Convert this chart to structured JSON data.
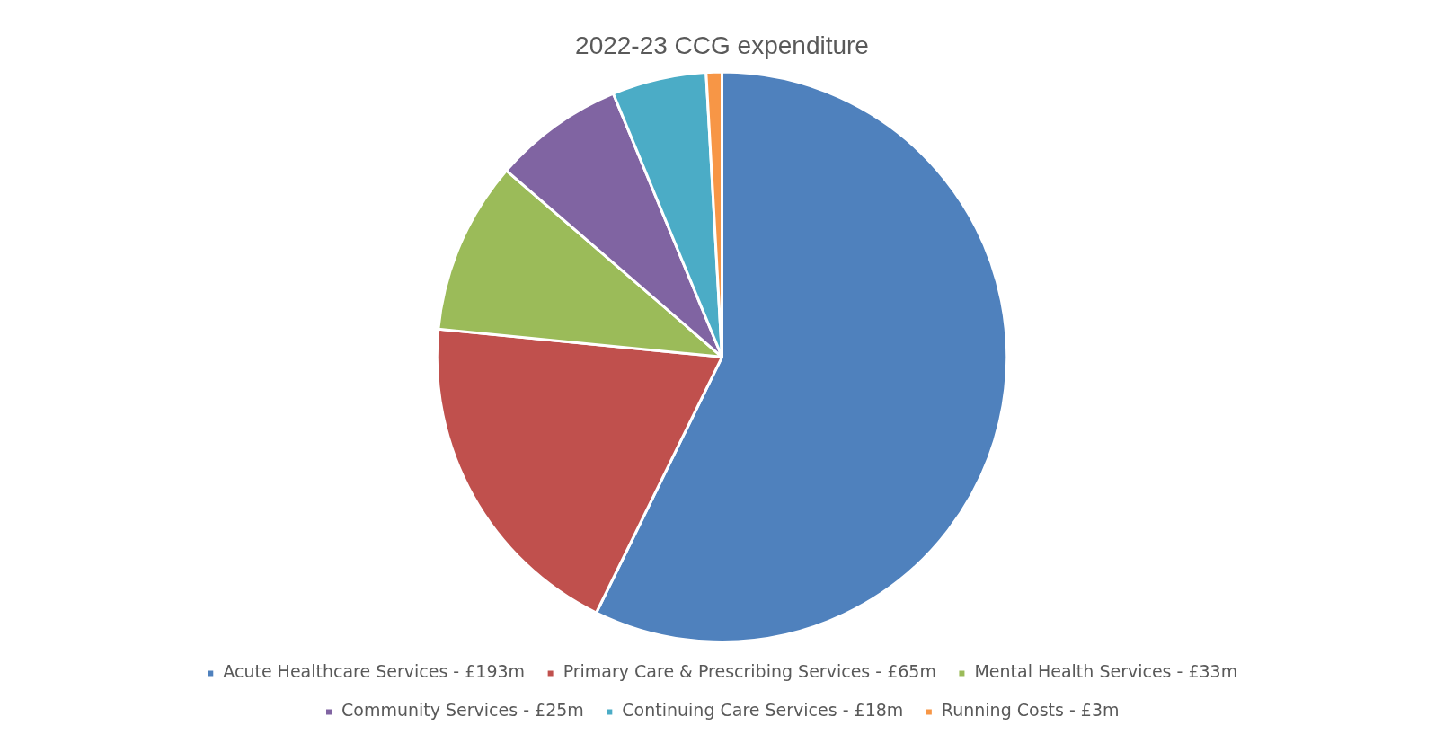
{
  "chart_data": {
    "type": "pie",
    "title": "2022-23 CCG expenditure",
    "categories": [
      "Acute Healthcare Services",
      "Primary Care & Prescribing Services",
      "Mental Health Services",
      "Community Services",
      "Continuing Care Services",
      "Running Costs"
    ],
    "values": [
      193,
      65,
      33,
      25,
      18,
      3
    ],
    "value_labels": [
      "£193m",
      "£65m",
      "£33m",
      "£25m",
      "£18m",
      "£3m"
    ],
    "colors": [
      "#4f81bd",
      "#c0504d",
      "#9bbb59",
      "#8064a2",
      "#4bacc6",
      "#f79646"
    ],
    "legend": "bottom"
  }
}
